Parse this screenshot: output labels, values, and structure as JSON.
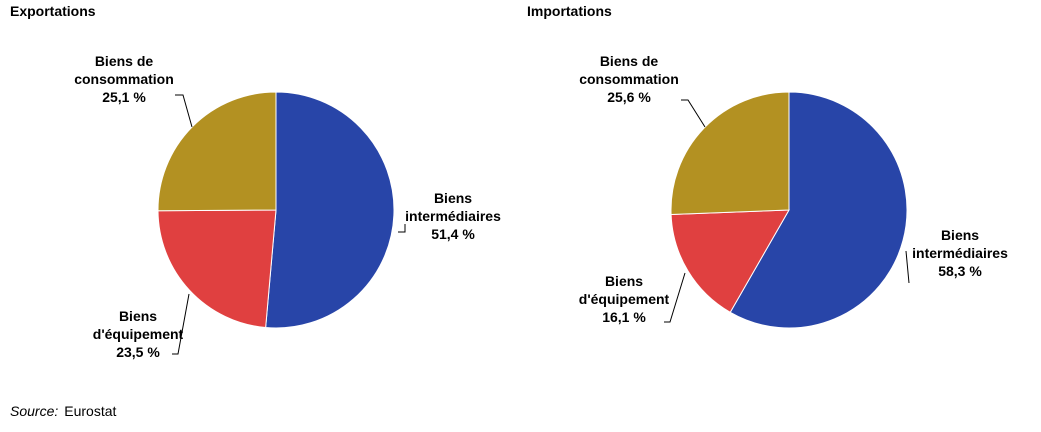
{
  "chart_data": [
    {
      "type": "pie",
      "title": "Exportations",
      "slices": [
        {
          "label": [
            "Biens",
            "intermédiaires",
            "51,4 %"
          ],
          "value": 51.4,
          "color": "#2845a8"
        },
        {
          "label": [
            "Biens",
            "d'équipement",
            "23,5 %"
          ],
          "value": 23.5,
          "color": "#e04040"
        },
        {
          "label": [
            "Biens de",
            "consommation",
            "25,1 %"
          ],
          "value": 25.1,
          "color": "#b39122"
        }
      ]
    },
    {
      "type": "pie",
      "title": "Importations",
      "slices": [
        {
          "label": [
            "Biens",
            "intermédiaires",
            "58,3 %"
          ],
          "value": 58.3,
          "color": "#2845a8"
        },
        {
          "label": [
            "Biens",
            "d'équipement",
            "16,1 %"
          ],
          "value": 16.1,
          "color": "#e04040"
        },
        {
          "label": [
            "Biens de",
            "consommation",
            "25,6 %"
          ],
          "value": 25.6,
          "color": "#b39122"
        }
      ]
    }
  ],
  "source": {
    "label": "Source:",
    "value": "Eurostat"
  }
}
